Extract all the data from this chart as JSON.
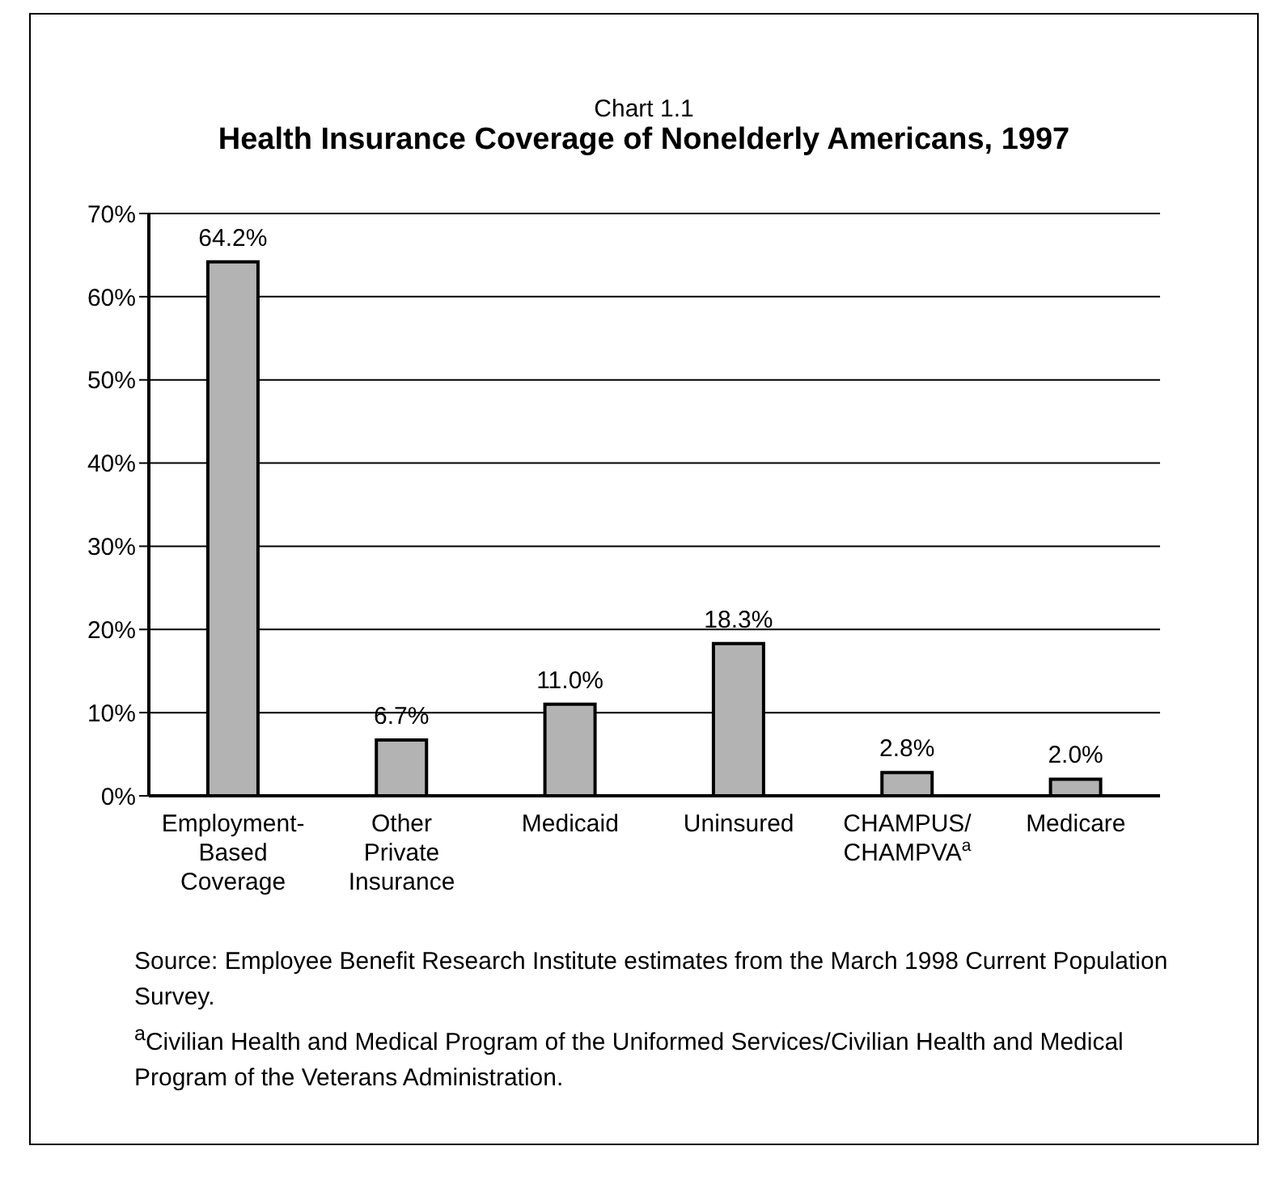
{
  "chart_data": {
    "type": "bar",
    "title": "Health Insurance Coverage of Nonelderly Americans, 1997",
    "subtitle": "Chart 1.1",
    "categories": [
      "Employment-Based Coverage",
      "Other Private Insurance",
      "Medicaid",
      "Uninsured",
      "CHAMPUS/ CHAMPVA$^{a}$",
      "Medicare"
    ],
    "values": [
      64.2,
      6.7,
      11.0,
      18.3,
      2.8,
      2.0
    ],
    "value_labels": [
      "64.2%",
      "6.7%",
      "11.0%",
      "18.3%",
      "2.8%",
      "2.0%"
    ],
    "color": "#b3b3b3",
    "ylim": [
      0,
      70
    ],
    "yticks": [
      {
        "value": 0,
        "label": "0%"
      },
      {
        "value": 10,
        "label": "10%"
      },
      {
        "value": 20,
        "label": "20%"
      },
      {
        "value": 30,
        "label": "30%"
      },
      {
        "value": 40,
        "label": "40%"
      },
      {
        "value": 50,
        "label": "50%"
      },
      {
        "value": 60,
        "label": "60%"
      },
      {
        "value": 70,
        "label": "70%"
      }
    ],
    "grid": "y",
    "annotations": [
      "Source: Employee Benefit Research Institute estimates from the March 1998 Current Population Survey.",
      "$^{a}$Civilian Health and Medical Program of the Uniformed Services/Civilian Health and Medical Program of the Veterans Administration."
    ]
  }
}
